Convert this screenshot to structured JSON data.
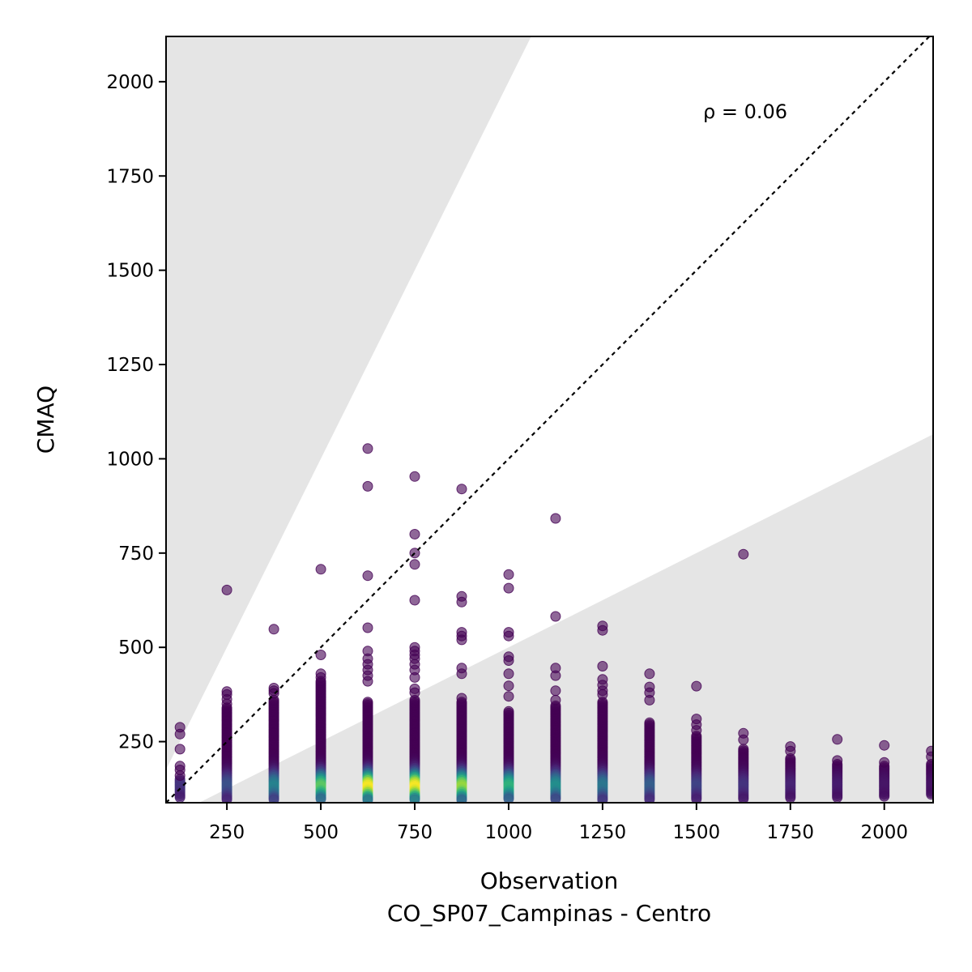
{
  "chart_data": {
    "type": "scatter",
    "xlabel": "Observation",
    "xlabel_sub": "CO_SP07_Campinas - Centro",
    "ylabel": "CMAQ",
    "xlim": [
      88,
      2130
    ],
    "ylim": [
      88,
      2120
    ],
    "x_ticks": [
      250,
      500,
      750,
      1000,
      1250,
      1500,
      1750,
      2000
    ],
    "y_ticks": [
      250,
      500,
      750,
      1000,
      1250,
      1500,
      1750,
      2000
    ],
    "annotation": "ρ = 0.06",
    "identity_line": true,
    "shaded_band": "factor-of-2 region shaded outside (y > 2x and y < x/2)",
    "colormap": "viridis (point density)",
    "colors": {
      "band": "#e5e5e5",
      "low_density": "#440154",
      "high_density": "#fde725"
    },
    "columns": [
      {
        "x": 125,
        "outliers": [
          288,
          270,
          230,
          185,
          175,
          160
        ],
        "dense_range": [
          100,
          150
        ],
        "peak": 0.15
      },
      {
        "x": 250,
        "outliers": [
          652,
          383,
          375,
          362,
          350
        ],
        "dense_range": [
          95,
          340
        ],
        "peak": 0.25
      },
      {
        "x": 375,
        "outliers": [
          548,
          392,
          385,
          378
        ],
        "dense_range": [
          95,
          360
        ],
        "peak": 0.45
      },
      {
        "x": 500,
        "outliers": [
          707,
          480,
          430,
          420
        ],
        "dense_range": [
          95,
          410
        ],
        "peak": 0.75
      },
      {
        "x": 625,
        "outliers": [
          1027,
          927,
          690,
          552,
          490,
          470,
          455,
          440,
          425,
          410
        ],
        "dense_range": [
          95,
          355
        ],
        "peak": 1.0
      },
      {
        "x": 750,
        "outliers": [
          953,
          800,
          750,
          720,
          625,
          500,
          490,
          480,
          470,
          455,
          440,
          420,
          390,
          380
        ],
        "dense_range": [
          95,
          360
        ],
        "peak": 1.0
      },
      {
        "x": 875,
        "outliers": [
          920,
          635,
          620,
          540,
          530,
          520,
          445,
          430,
          365
        ],
        "dense_range": [
          95,
          355
        ],
        "peak": 0.85
      },
      {
        "x": 1000,
        "outliers": [
          693,
          657,
          540,
          530,
          475,
          465,
          430,
          398,
          370
        ],
        "dense_range": [
          95,
          330
        ],
        "peak": 0.65
      },
      {
        "x": 1125,
        "outliers": [
          842,
          582,
          445,
          425,
          385,
          360
        ],
        "dense_range": [
          95,
          345
        ],
        "peak": 0.5
      },
      {
        "x": 1250,
        "outliers": [
          557,
          545,
          450,
          415,
          400,
          385,
          375
        ],
        "dense_range": [
          95,
          355
        ],
        "peak": 0.4
      },
      {
        "x": 1375,
        "outliers": [
          430,
          395,
          380,
          360
        ],
        "dense_range": [
          95,
          300
        ],
        "peak": 0.3
      },
      {
        "x": 1500,
        "outliers": [
          397,
          310,
          295,
          280
        ],
        "dense_range": [
          95,
          265
        ],
        "peak": 0.2
      },
      {
        "x": 1625,
        "outliers": [
          747,
          272,
          255
        ],
        "dense_range": [
          95,
          230
        ],
        "peak": 0.15
      },
      {
        "x": 1750,
        "outliers": [
          237,
          225
        ],
        "dense_range": [
          100,
          205
        ],
        "peak": 0.1
      },
      {
        "x": 1875,
        "outliers": [
          256,
          200
        ],
        "dense_range": [
          100,
          190
        ],
        "peak": 0.08
      },
      {
        "x": 2000,
        "outliers": [
          240,
          195
        ],
        "dense_range": [
          105,
          185
        ],
        "peak": 0.06
      },
      {
        "x": 2125,
        "outliers": [
          225,
          210
        ],
        "dense_range": [
          110,
          190
        ],
        "peak": 0.05
      }
    ]
  }
}
